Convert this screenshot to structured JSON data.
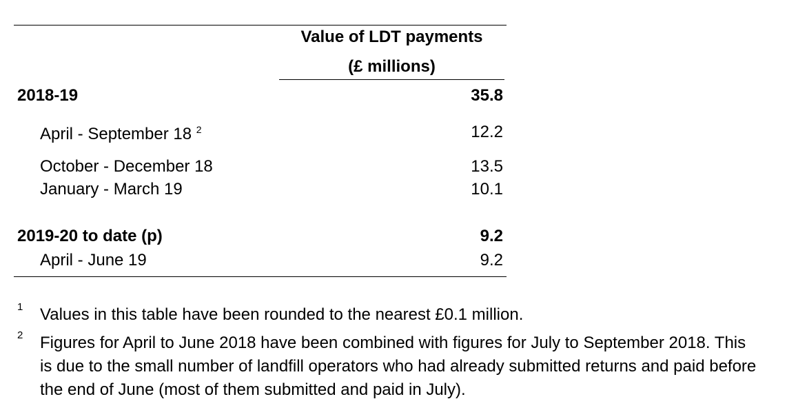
{
  "table": {
    "header_line1": "Value of LDT payments",
    "header_line2": "(£ millions)",
    "sections": [
      {
        "label": "2018-19",
        "value": "35.8",
        "rows": [
          {
            "label": "April - September 18",
            "note": "2",
            "value": "12.2"
          },
          {
            "label": "October - December 18",
            "value": "13.5"
          },
          {
            "label": "January - March 19",
            "value": "10.1"
          }
        ]
      },
      {
        "label": "2019-20 to date (p)",
        "value": "9.2",
        "rows": [
          {
            "label": "April - June 19",
            "value": "9.2"
          }
        ]
      }
    ]
  },
  "footnotes": [
    {
      "mark": "1",
      "text": "Values in this table have been rounded to the nearest £0.1 million."
    },
    {
      "mark": "2",
      "text": "Figures for April to June 2018 have been combined with figures for July to September 2018. This is due to the small number of landfill operators who had already submitted returns and paid before the end of June (most of them submitted and paid in July)."
    }
  ]
}
